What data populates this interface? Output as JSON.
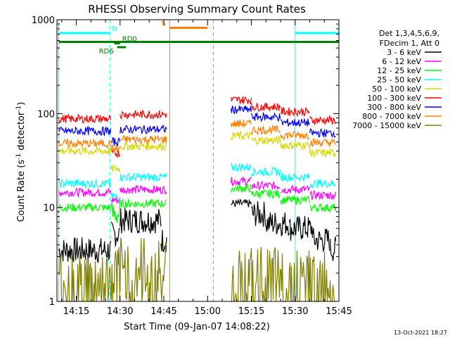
{
  "chart_data": {
    "type": "line",
    "title": "RHESSI Observing Summary Count Rates",
    "xlabel": "Start Time (09-Jan-07 14:08:22)",
    "ylabel_main": "Count Rate (s",
    "ylabel_sup1": "-1",
    "ylabel_mid": " detector",
    "ylabel_sup2": "-1",
    "ylabel_end": ")",
    "x_range_min": [
      8.37,
      105
    ],
    "y_scale": "log",
    "y_range": [
      1,
      1000
    ],
    "y_ticks": [
      {
        "value": 1,
        "label": "1"
      },
      {
        "value": 10,
        "label": "10"
      },
      {
        "value": 100,
        "label": "100"
      },
      {
        "value": 1000,
        "label": "1000"
      }
    ],
    "x_ticks": [
      {
        "value": 15,
        "label": "14:15"
      },
      {
        "value": 30,
        "label": "14:30"
      },
      {
        "value": 45,
        "label": "14:45"
      },
      {
        "value": 60,
        "label": "15:00"
      },
      {
        "value": 75,
        "label": "15:15"
      },
      {
        "value": 90,
        "label": "15:30"
      },
      {
        "value": 105,
        "label": "15:45"
      }
    ],
    "legend_header": [
      "Det 1,3,4,5,6,9,",
      "FDecim 1, Att 0"
    ],
    "legend_position": "right",
    "series": [
      {
        "name": "3 - 6 keV",
        "color": "#000000",
        "segments": [
          [
            9,
            27,
            3.5
          ],
          [
            27,
            30,
            5.2
          ],
          [
            30,
            44,
            7.3
          ],
          [
            44,
            46,
            4.5
          ],
          [
            68,
            75,
            11
          ],
          [
            75,
            80,
            8.5
          ],
          [
            80,
            88,
            6.8
          ],
          [
            88,
            96,
            6.0
          ],
          [
            96,
            102,
            4.5
          ],
          [
            102,
            104,
            3.6
          ]
        ]
      },
      {
        "name": "6 - 12 keV",
        "color": "#ff00ff",
        "segments": [
          [
            9,
            27,
            14.5
          ],
          [
            27,
            30,
            12
          ],
          [
            30,
            46,
            15.5
          ],
          [
            68,
            75,
            19
          ],
          [
            75,
            85,
            17
          ],
          [
            85,
            95,
            15.5
          ],
          [
            95,
            104,
            13.5
          ]
        ]
      },
      {
        "name": "12 - 25 keV",
        "color": "#00ff00",
        "segments": [
          [
            9,
            27,
            10
          ],
          [
            27,
            30,
            8.5
          ],
          [
            30,
            46,
            11
          ],
          [
            68,
            75,
            16
          ],
          [
            75,
            85,
            14
          ],
          [
            85,
            95,
            12
          ],
          [
            95,
            104,
            10
          ]
        ]
      },
      {
        "name": "25 - 50 keV",
        "color": "#00ffff",
        "segments": [
          [
            9,
            27,
            18
          ],
          [
            27,
            30,
            13
          ],
          [
            30,
            46,
            21
          ],
          [
            68,
            75,
            27
          ],
          [
            75,
            85,
            24
          ],
          [
            85,
            95,
            21
          ],
          [
            95,
            104,
            18
          ]
        ]
      },
      {
        "name": "50 - 100 keV",
        "color": "#d8d800",
        "segments": [
          [
            9,
            27,
            40
          ],
          [
            27,
            30,
            26
          ],
          [
            30,
            46,
            45
          ],
          [
            68,
            75,
            58
          ],
          [
            75,
            85,
            52
          ],
          [
            85,
            95,
            46
          ],
          [
            95,
            104,
            38
          ]
        ]
      },
      {
        "name": "100 - 300 keV",
        "color": "#ff0000",
        "segments": [
          [
            9,
            27,
            88
          ],
          [
            27,
            30,
            38
          ],
          [
            30,
            46,
            98
          ],
          [
            68,
            75,
            140
          ],
          [
            75,
            85,
            118
          ],
          [
            85,
            95,
            105
          ],
          [
            95,
            104,
            85
          ]
        ]
      },
      {
        "name": "300 - 800 keV",
        "color": "#0000ff",
        "segments": [
          [
            9,
            27,
            65
          ],
          [
            27,
            30,
            50
          ],
          [
            30,
            46,
            68
          ],
          [
            68,
            75,
            110
          ],
          [
            75,
            85,
            92
          ],
          [
            85,
            95,
            80
          ],
          [
            95,
            104,
            62
          ]
        ]
      },
      {
        "name": "800 - 7000 keV",
        "color": "#ff8000",
        "segments": [
          [
            9,
            27,
            48
          ],
          [
            27,
            30,
            42
          ],
          [
            30,
            46,
            53
          ],
          [
            68,
            75,
            78
          ],
          [
            75,
            85,
            67
          ],
          [
            85,
            95,
            59
          ],
          [
            95,
            104,
            49
          ]
        ]
      },
      {
        "name": "7000 - 15000 keV",
        "color": "#808000",
        "segments": [
          [
            9,
            27,
            1.6
          ],
          [
            27,
            30,
            2.0
          ],
          [
            30,
            46,
            2.2
          ],
          [
            68,
            104,
            1.7
          ]
        ]
      }
    ],
    "state_bars": [
      {
        "label": "N",
        "color": "#00ffff",
        "value": 720,
        "ranges": [
          [
            9,
            26.5
          ],
          [
            90,
            105
          ]
        ]
      },
      {
        "label": "S",
        "color": "#ff8000",
        "value": 820,
        "ranges": [
          [
            47,
            60
          ]
        ]
      },
      {
        "label": "",
        "color": "#008000",
        "value": 580,
        "ranges": [
          [
            9,
            105
          ]
        ]
      },
      {
        "label": "RD0",
        "color": "#008000",
        "value": 560,
        "ranges": [
          [
            28,
            30
          ]
        ]
      },
      {
        "label": "RD6",
        "color": "#008000",
        "value": 510,
        "ranges": [
          [
            29,
            32
          ]
        ]
      }
    ],
    "vlines": [
      {
        "x": 9,
        "color": "#00ffff",
        "dash": false
      },
      {
        "x": 26.5,
        "color": "#00ffff",
        "dash": true
      },
      {
        "x": 47,
        "color": "#ff8000",
        "dash": false
      },
      {
        "x": 62,
        "color": "#ff8000",
        "dash": true
      },
      {
        "x": 90,
        "color": "#00ffff",
        "dash": false
      },
      {
        "x": 105,
        "color": "#00ffff",
        "dash": true
      }
    ],
    "footer": "13-Oct-2021 18:27"
  }
}
